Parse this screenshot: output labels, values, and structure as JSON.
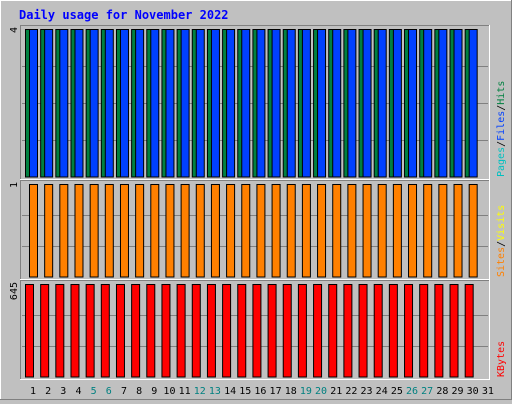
{
  "chart_data": {
    "type": "bar",
    "title": "Daily usage for November 2022",
    "categories": [
      "1",
      "2",
      "3",
      "4",
      "5",
      "6",
      "7",
      "8",
      "9",
      "10",
      "11",
      "12",
      "13",
      "14",
      "15",
      "16",
      "17",
      "18",
      "19",
      "20",
      "21",
      "22",
      "23",
      "24",
      "25",
      "26",
      "27",
      "28",
      "29",
      "30",
      "31"
    ],
    "weekend_days": [
      "5",
      "6",
      "12",
      "13",
      "19",
      "20",
      "26",
      "27"
    ],
    "panels": [
      {
        "axis_max_label": "4",
        "ymax": 4,
        "legend": [
          {
            "text": "Pages",
            "color": "#00c0c0"
          },
          {
            "text": "/",
            "color": "#000000"
          },
          {
            "text": "Files",
            "color": "#0040ff"
          },
          {
            "text": "/",
            "color": "#000000"
          },
          {
            "text": "Hits",
            "color": "#008040"
          }
        ],
        "series": [
          {
            "name": "Hits",
            "color": "#008040",
            "values": [
              4,
              4,
              4,
              4,
              4,
              4,
              4,
              4,
              4,
              4,
              4,
              4,
              4,
              4,
              4,
              4,
              4,
              4,
              4,
              4,
              4,
              4,
              4,
              4,
              4,
              4,
              4,
              4,
              4,
              4
            ]
          },
          {
            "name": "Files",
            "color": "#0040ff",
            "values": [
              4,
              4,
              4,
              4,
              4,
              4,
              4,
              4,
              4,
              4,
              4,
              4,
              4,
              4,
              4,
              4,
              4,
              4,
              4,
              4,
              4,
              4,
              4,
              4,
              4,
              4,
              4,
              4,
              4,
              4
            ]
          },
          {
            "name": "Pages",
            "color": "#00c0c0",
            "values": [
              0,
              0,
              0,
              0,
              0,
              0,
              0,
              0,
              0,
              0,
              0,
              0,
              0,
              0,
              0,
              0,
              0,
              0,
              0,
              0,
              0,
              0,
              0,
              0,
              0,
              0,
              0,
              0,
              0,
              0
            ]
          }
        ]
      },
      {
        "axis_max_label": "1",
        "ymax": 1,
        "legend": [
          {
            "text": "Sites",
            "color": "#ff8000"
          },
          {
            "text": "/",
            "color": "#000000"
          },
          {
            "text": "Visits",
            "color": "#ffff00"
          }
        ],
        "series": [
          {
            "name": "Visits",
            "color": "#ffff00",
            "values": [
              0,
              0,
              0,
              0,
              0,
              0,
              0,
              0,
              0,
              0,
              0,
              0,
              0,
              0,
              0,
              0,
              0,
              0,
              0,
              0,
              0,
              0,
              0,
              0,
              0,
              0,
              0,
              0,
              0,
              0
            ]
          },
          {
            "name": "Sites",
            "color": "#ff8000",
            "values": [
              1,
              1,
              1,
              1,
              1,
              1,
              1,
              1,
              1,
              1,
              1,
              1,
              1,
              1,
              1,
              1,
              1,
              1,
              1,
              1,
              1,
              1,
              1,
              1,
              1,
              1,
              1,
              1,
              1,
              1
            ]
          }
        ]
      },
      {
        "axis_max_label": "645",
        "ymax": 645,
        "legend": [
          {
            "text": "KBytes",
            "color": "#ff0000"
          }
        ],
        "series": [
          {
            "name": "KBytes",
            "color": "#ff0000",
            "values": [
              645,
              645,
              645,
              645,
              645,
              645,
              645,
              645,
              645,
              645,
              645,
              645,
              645,
              645,
              645,
              645,
              645,
              645,
              645,
              645,
              645,
              645,
              645,
              645,
              645,
              645,
              645,
              645,
              645,
              645
            ]
          }
        ]
      }
    ],
    "colors": {
      "background": "#c0c0c0",
      "plot": "#c0c0c0",
      "grid": "#808080",
      "title": "#0000ff",
      "weekday_label": "#000000",
      "weekend_label": "#008080"
    }
  }
}
